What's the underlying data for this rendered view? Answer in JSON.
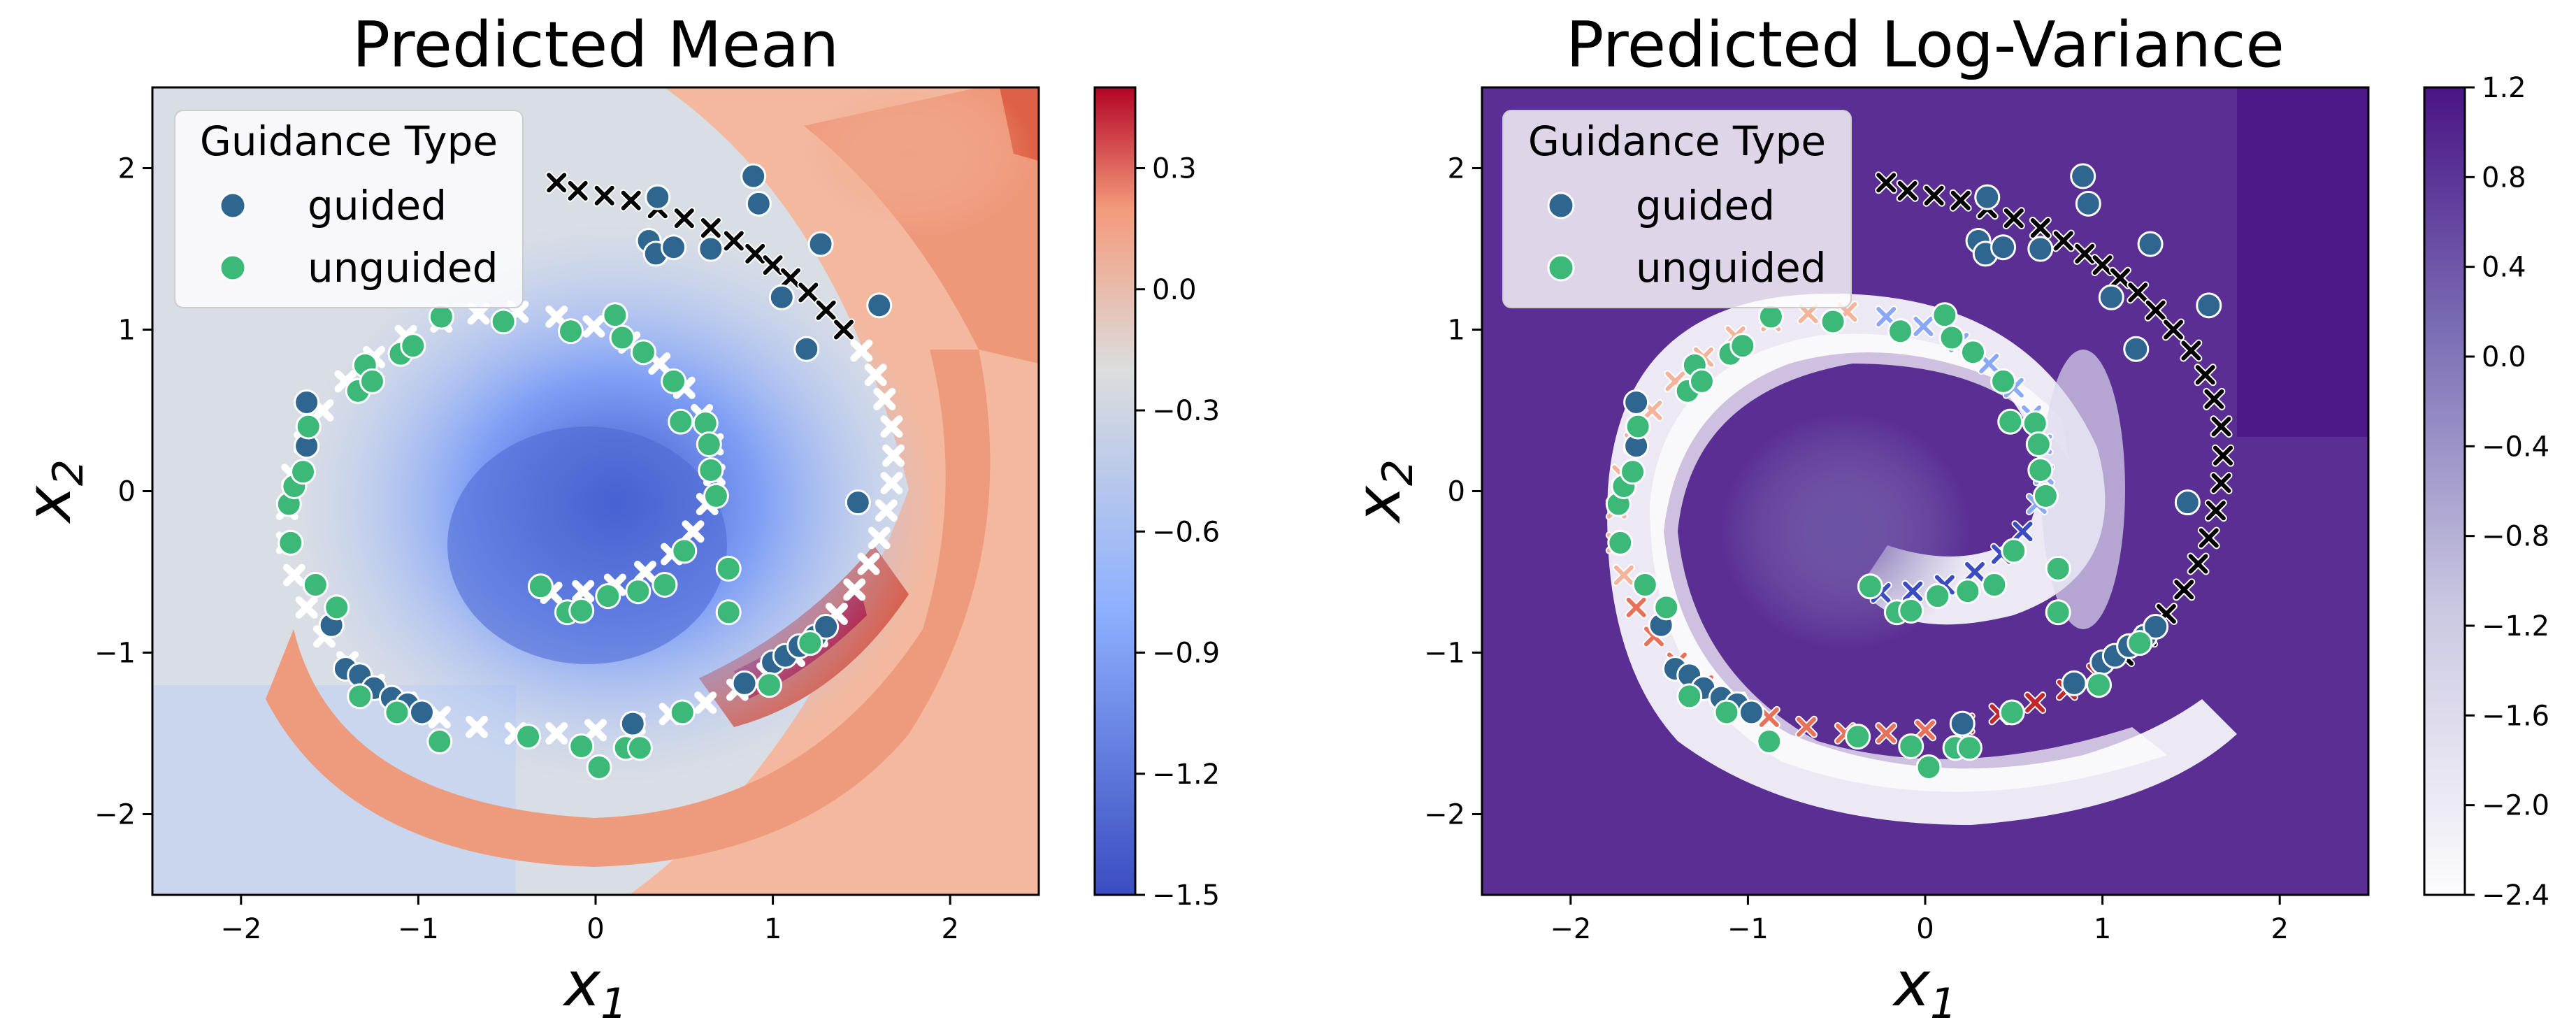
{
  "figure": {
    "legend_title": "Guidance Type",
    "legend_items": [
      {
        "label": "guided",
        "color": "#2f6690"
      },
      {
        "label": "unguided",
        "color": "#3cb878"
      }
    ]
  },
  "chart_data": [
    {
      "type": "contour",
      "title": "Predicted Mean",
      "xlabel": "x1",
      "ylabel": "x2",
      "xlim": [
        -2.5,
        2.5
      ],
      "ylim": [
        -2.5,
        2.5
      ],
      "xticks": [
        -2,
        -1,
        0,
        1,
        2
      ],
      "yticks": [
        -2,
        -1,
        0,
        1,
        2
      ],
      "colormap": "coolwarm",
      "colorbar": {
        "range": [
          -1.5,
          0.5
        ],
        "ticks": [
          -1.5,
          -1.2,
          -0.9,
          -0.6,
          -0.3,
          0.0,
          0.3
        ],
        "tick_labels": [
          "−1.5",
          "−1.2",
          "−0.9",
          "−0.6",
          "−0.3",
          "0.0",
          "0.3"
        ]
      },
      "legend": {
        "title": "Guidance Type",
        "position": "upper-left"
      },
      "series": [
        {
          "name": "guided",
          "marker": "circle",
          "color": "#2f6690",
          "points": [
            [
              0.89,
              1.95
            ],
            [
              0.92,
              1.78
            ],
            [
              0.35,
              1.82
            ],
            [
              0.3,
              1.55
            ],
            [
              0.34,
              1.47
            ],
            [
              0.44,
              1.51
            ],
            [
              0.65,
              1.5
            ],
            [
              1.27,
              1.53
            ],
            [
              1.6,
              1.15
            ],
            [
              1.05,
              1.2
            ],
            [
              1.19,
              0.88
            ],
            [
              1.48,
              -0.07
            ],
            [
              -1.63,
              0.55
            ],
            [
              -1.63,
              0.28
            ],
            [
              -1.49,
              -0.83
            ],
            [
              -1.41,
              -1.1
            ],
            [
              -1.33,
              -1.14
            ],
            [
              -1.25,
              -1.22
            ],
            [
              -1.15,
              -1.28
            ],
            [
              -1.06,
              -1.32
            ],
            [
              -0.98,
              -1.37
            ],
            [
              0.21,
              -1.44
            ],
            [
              0.84,
              -1.19
            ],
            [
              1.0,
              -1.06
            ],
            [
              1.07,
              -1.02
            ],
            [
              1.15,
              -0.96
            ],
            [
              1.24,
              -0.9
            ],
            [
              1.3,
              -0.84
            ]
          ]
        },
        {
          "name": "unguided",
          "marker": "circle",
          "color": "#3cb878",
          "points": [
            [
              -1.72,
              -0.32
            ],
            [
              -1.73,
              -0.08
            ],
            [
              -1.7,
              0.03
            ],
            [
              -1.65,
              0.12
            ],
            [
              -1.62,
              0.4
            ],
            [
              -1.58,
              -0.58
            ],
            [
              -1.46,
              -0.72
            ],
            [
              -1.34,
              0.62
            ],
            [
              -1.3,
              0.78
            ],
            [
              -1.26,
              0.68
            ],
            [
              -1.1,
              0.85
            ],
            [
              -1.03,
              0.9
            ],
            [
              -0.87,
              1.08
            ],
            [
              -0.52,
              1.05
            ],
            [
              -0.14,
              0.99
            ],
            [
              0.11,
              1.09
            ],
            [
              0.15,
              0.95
            ],
            [
              0.27,
              0.86
            ],
            [
              0.44,
              0.68
            ],
            [
              0.48,
              0.43
            ],
            [
              0.62,
              0.42
            ],
            [
              0.64,
              0.29
            ],
            [
              0.65,
              0.13
            ],
            [
              0.68,
              -0.03
            ],
            [
              0.5,
              -0.37
            ],
            [
              0.75,
              -0.48
            ],
            [
              -0.31,
              -0.59
            ],
            [
              -0.16,
              -0.75
            ],
            [
              -0.08,
              -0.74
            ],
            [
              0.07,
              -0.65
            ],
            [
              0.24,
              -0.62
            ],
            [
              0.39,
              -0.58
            ],
            [
              0.75,
              -0.75
            ],
            [
              0.98,
              -1.2
            ],
            [
              1.21,
              -0.94
            ],
            [
              -1.33,
              -1.27
            ],
            [
              -1.12,
              -1.37
            ],
            [
              -0.88,
              -1.55
            ],
            [
              -0.38,
              -1.52
            ],
            [
              -0.08,
              -1.58
            ],
            [
              0.02,
              -1.71
            ],
            [
              0.17,
              -1.59
            ],
            [
              0.25,
              -1.59
            ],
            [
              0.49,
              -1.37
            ]
          ]
        },
        {
          "name": "samples",
          "marker": "x",
          "color": "#000000",
          "points": [
            [
              -0.22,
              1.91
            ],
            [
              -0.1,
              1.86
            ],
            [
              0.05,
              1.83
            ],
            [
              0.2,
              1.8
            ],
            [
              0.35,
              1.75
            ],
            [
              0.5,
              1.69
            ],
            [
              0.65,
              1.63
            ],
            [
              0.78,
              1.55
            ],
            [
              0.9,
              1.47
            ],
            [
              1.0,
              1.4
            ],
            [
              1.1,
              1.32
            ],
            [
              1.2,
              1.23
            ],
            [
              1.3,
              1.12
            ],
            [
              1.4,
              1.0
            ],
            [
              1.5,
              0.87
            ],
            [
              1.58,
              0.72
            ],
            [
              1.63,
              0.57
            ],
            [
              1.67,
              0.4
            ],
            [
              1.68,
              0.22
            ],
            [
              1.67,
              0.05
            ],
            [
              1.64,
              -0.12
            ],
            [
              1.6,
              -0.29
            ],
            [
              1.54,
              -0.45
            ],
            [
              1.46,
              -0.61
            ],
            [
              1.36,
              -0.76
            ],
            [
              1.25,
              -0.9
            ],
            [
              1.12,
              -1.02
            ],
            [
              0.97,
              -1.13
            ],
            [
              0.8,
              -1.23
            ],
            [
              0.62,
              -1.31
            ],
            [
              0.42,
              -1.38
            ],
            [
              0.22,
              -1.44
            ],
            [
              0.0,
              -1.48
            ],
            [
              -0.22,
              -1.5
            ],
            [
              -0.45,
              -1.5
            ],
            [
              -0.67,
              -1.46
            ],
            [
              -0.88,
              -1.4
            ],
            [
              -1.07,
              -1.31
            ],
            [
              -1.25,
              -1.2
            ],
            [
              -1.4,
              -1.06
            ],
            [
              -1.53,
              -0.9
            ],
            [
              -1.63,
              -0.72
            ],
            [
              -1.7,
              -0.52
            ],
            [
              -1.74,
              -0.32
            ],
            [
              -1.74,
              -0.11
            ],
            [
              -1.71,
              0.1
            ],
            [
              -1.64,
              0.3
            ],
            [
              -1.54,
              0.5
            ],
            [
              -1.41,
              0.68
            ],
            [
              -1.25,
              0.83
            ],
            [
              -1.07,
              0.96
            ],
            [
              -0.87,
              1.05
            ],
            [
              -0.66,
              1.1
            ],
            [
              -0.44,
              1.11
            ],
            [
              -0.22,
              1.08
            ],
            [
              -0.01,
              1.02
            ],
            [
              0.19,
              0.92
            ],
            [
              0.36,
              0.79
            ],
            [
              0.5,
              0.64
            ],
            [
              0.6,
              0.47
            ],
            [
              0.66,
              0.29
            ],
            [
              0.67,
              0.1
            ],
            [
              0.63,
              -0.08
            ],
            [
              0.55,
              -0.25
            ],
            [
              0.43,
              -0.39
            ],
            [
              0.28,
              -0.5
            ],
            [
              0.11,
              -0.58
            ],
            [
              -0.07,
              -0.62
            ],
            [
              -0.25,
              -0.63
            ]
          ]
        }
      ]
    },
    {
      "type": "contour",
      "title": "Predicted Log-Variance",
      "xlabel": "x1",
      "ylabel": "x2",
      "xlim": [
        -2.5,
        2.5
      ],
      "ylim": [
        -2.5,
        2.5
      ],
      "xticks": [
        -2,
        -1,
        0,
        1,
        2
      ],
      "yticks": [
        -2,
        -1,
        0,
        1,
        2
      ],
      "colormap": "Purples",
      "colorbar": {
        "range": [
          -2.4,
          1.2
        ],
        "ticks": [
          -2.4,
          -2.0,
          -1.6,
          -1.2,
          -0.8,
          -0.4,
          0.0,
          0.4,
          0.8,
          1.2
        ],
        "tick_labels": [
          "−2.4",
          "−2.0",
          "−1.6",
          "−1.2",
          "−0.8",
          "−0.4",
          "0.0",
          "0.4",
          "0.8",
          "1.2"
        ]
      },
      "legend": {
        "title": "Guidance Type",
        "position": "upper-left"
      },
      "series": [
        {
          "name": "guided",
          "marker": "circle",
          "color": "#2f6690",
          "same_as_panel": 0
        },
        {
          "name": "unguided",
          "marker": "circle",
          "color": "#3cb878",
          "same_as_panel": 0
        },
        {
          "name": "samples",
          "marker": "x",
          "color": "mean-colored",
          "same_as_panel": 0
        }
      ]
    }
  ]
}
